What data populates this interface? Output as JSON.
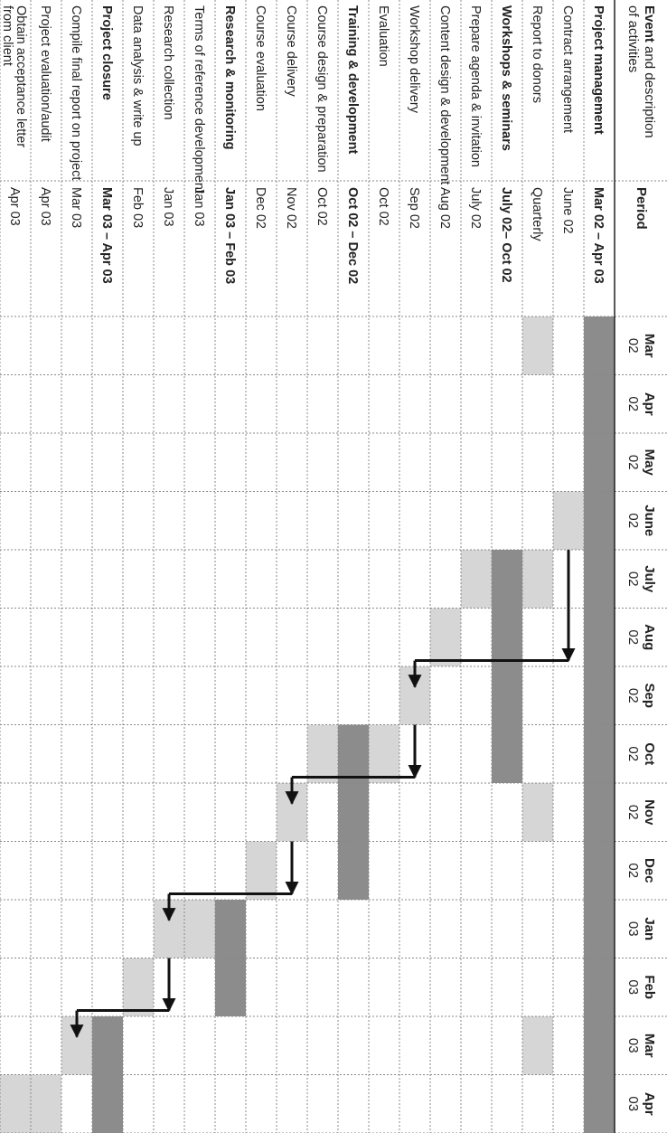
{
  "header": {
    "event_bold": "Event",
    "event_rest": " and description",
    "event_line2": "of activities",
    "period": "Period"
  },
  "months": [
    {
      "name": "Mar",
      "year": "02"
    },
    {
      "name": "Apr",
      "year": "02"
    },
    {
      "name": "May",
      "year": "02"
    },
    {
      "name": "June",
      "year": "02"
    },
    {
      "name": "July",
      "year": "02"
    },
    {
      "name": "Aug",
      "year": "02"
    },
    {
      "name": "Sep",
      "year": "02"
    },
    {
      "name": "Oct",
      "year": "02"
    },
    {
      "name": "Nov",
      "year": "02"
    },
    {
      "name": "Dec",
      "year": "02"
    },
    {
      "name": "Jan",
      "year": "03"
    },
    {
      "name": "Feb",
      "year": "03"
    },
    {
      "name": "Mar",
      "year": "03"
    },
    {
      "name": "Apr",
      "year": "03"
    }
  ],
  "colors": {
    "phase_bar": "#8c8c8c",
    "task_bar": "#d6d6d6",
    "arrow": "#111111",
    "grid": "#888888"
  },
  "rows": [
    {
      "label": "Project management",
      "bold": true,
      "period": "Mar 02 – Apr 03",
      "bars": [
        {
          "from": 0,
          "to": 13,
          "shade": "phase"
        }
      ]
    },
    {
      "label": "Contract arrangement",
      "bold": false,
      "period": "June 02",
      "bars": [
        {
          "from": 3,
          "to": 3,
          "shade": "task"
        }
      ]
    },
    {
      "label": "Report to donors",
      "bold": false,
      "period": "Quarterly",
      "bars": [
        {
          "from": 0,
          "to": 0,
          "shade": "task"
        },
        {
          "from": 4,
          "to": 4,
          "shade": "task"
        },
        {
          "from": 8,
          "to": 8,
          "shade": "task"
        },
        {
          "from": 12,
          "to": 12,
          "shade": "task"
        }
      ]
    },
    {
      "label": "Workshops & seminars",
      "bold": true,
      "period": "July 02– Oct 02",
      "bars": [
        {
          "from": 4,
          "to": 7,
          "shade": "phase"
        }
      ]
    },
    {
      "label": "Prepare agenda & invitation",
      "bold": false,
      "period": "July 02",
      "bars": [
        {
          "from": 4,
          "to": 4,
          "shade": "task"
        }
      ]
    },
    {
      "label": "Content design & development",
      "bold": false,
      "period": "Aug 02",
      "bars": [
        {
          "from": 5,
          "to": 5,
          "shade": "task"
        }
      ]
    },
    {
      "label": "Workshop delivery",
      "bold": false,
      "period": "Sep 02",
      "bars": [
        {
          "from": 6,
          "to": 6,
          "shade": "task"
        }
      ]
    },
    {
      "label": "Evaluation",
      "bold": false,
      "period": "Oct 02",
      "bars": [
        {
          "from": 7,
          "to": 7,
          "shade": "task"
        }
      ]
    },
    {
      "label": "Training & development",
      "bold": true,
      "period": "Oct 02 – Dec 02",
      "bars": [
        {
          "from": 7,
          "to": 9,
          "shade": "phase"
        }
      ]
    },
    {
      "label": "Course design & preparation",
      "bold": false,
      "period": "Oct 02",
      "bars": [
        {
          "from": 7,
          "to": 7,
          "shade": "task"
        }
      ]
    },
    {
      "label": "Course delivery",
      "bold": false,
      "period": "Nov 02",
      "bars": [
        {
          "from": 8,
          "to": 8,
          "shade": "task"
        }
      ]
    },
    {
      "label": "Course evaluation",
      "bold": false,
      "period": "Dec 02",
      "bars": [
        {
          "from": 9,
          "to": 9,
          "shade": "task"
        }
      ]
    },
    {
      "label": "Research & monitoring",
      "bold": true,
      "period": "Jan 03 – Feb 03",
      "bars": [
        {
          "from": 10,
          "to": 11,
          "shade": "phase"
        }
      ]
    },
    {
      "label": "Terms of reference development",
      "bold": false,
      "period": "Jan 03",
      "bars": [
        {
          "from": 10,
          "to": 10,
          "shade": "task"
        }
      ]
    },
    {
      "label": "Research collection",
      "bold": false,
      "period": "Jan 03",
      "bars": [
        {
          "from": 10,
          "to": 10,
          "shade": "task"
        }
      ]
    },
    {
      "label": "Data analysis & write up",
      "bold": false,
      "period": "Feb 03",
      "bars": [
        {
          "from": 11,
          "to": 11,
          "shade": "task"
        }
      ]
    },
    {
      "label": "Project closure",
      "bold": true,
      "period": "Mar 03 – Apr 03",
      "bars": [
        {
          "from": 12,
          "to": 13,
          "shade": "phase"
        }
      ]
    },
    {
      "label": "Compile final report on project",
      "bold": false,
      "period": "Mar 03",
      "bars": [
        {
          "from": 12,
          "to": 12,
          "shade": "task"
        }
      ]
    },
    {
      "label": "Project evaluation/audit",
      "bold": false,
      "period": "Apr 03",
      "bars": [
        {
          "from": 13,
          "to": 13,
          "shade": "task"
        }
      ]
    },
    {
      "label": "Obtain acceptance letter from client",
      "bold": false,
      "period": "Apr 03",
      "bars": [
        {
          "from": 13,
          "to": 13,
          "shade": "task"
        }
      ]
    }
  ],
  "dependencies": [
    {
      "from_row": 1,
      "from_month": 3,
      "to_row": 6,
      "to_month": 6
    },
    {
      "from_row": 6,
      "from_month": 6,
      "to_row": 10,
      "to_month": 8
    },
    {
      "from_row": 10,
      "from_month": 8,
      "to_row": 14,
      "to_month": 10
    },
    {
      "from_row": 14,
      "from_month": 10,
      "to_row": 17,
      "to_month": 12
    }
  ]
}
